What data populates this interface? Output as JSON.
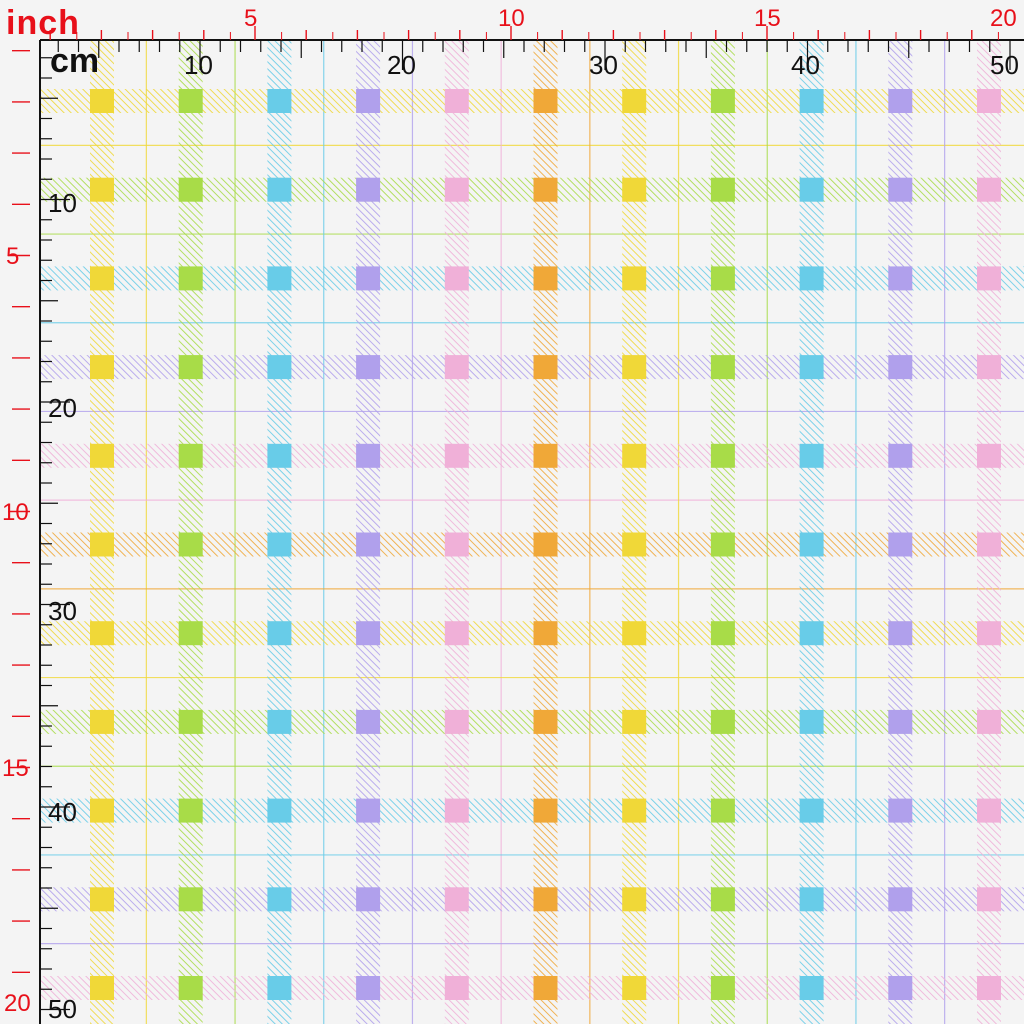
{
  "ruler": {
    "inch_unit": "inch",
    "cm_unit": "cm",
    "inch_labels": [
      "5",
      "10",
      "15",
      "20"
    ],
    "cm_labels": [
      "10",
      "20",
      "30",
      "40",
      "50"
    ]
  },
  "fabric": {
    "pattern": "pastel plaid",
    "colors": {
      "yellow": "#f0d838",
      "green": "#a8dc48",
      "cyan": "#68cce8",
      "purple": "#b0a0ec",
      "pink": "#f0b0d8",
      "orange": "#f0a838",
      "background": "#f4f4f4"
    },
    "stripe_color_sequence": [
      "yellow",
      "green",
      "cyan",
      "purple",
      "pink",
      "orange",
      "yellow",
      "green",
      "cyan",
      "purple",
      "pink"
    ],
    "row_color_sequence": [
      "yellow",
      "green",
      "cyan",
      "purple",
      "pink",
      "orange",
      "yellow",
      "green",
      "cyan",
      "purple",
      "pink"
    ]
  },
  "colors": {
    "inch_ruler": "#e8101a",
    "cm_ruler": "#111111"
  }
}
